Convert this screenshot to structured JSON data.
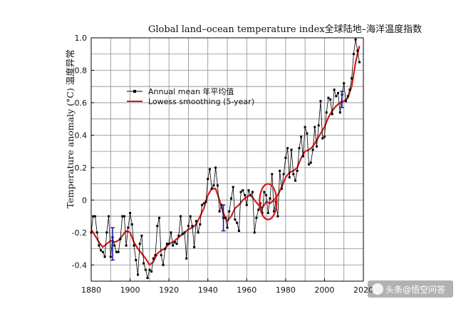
{
  "chart_data": {
    "type": "line",
    "title": "Global land–ocean temperature index全球陆地–海洋温度指数",
    "xlabel": "",
    "ylabel": "Temperature anomaly (°C) 温度异常",
    "xlim": [
      1880,
      2020
    ],
    "ylim": [
      -0.5,
      1.0
    ],
    "x_ticks": [
      "1880",
      "1900",
      "1920",
      "1940",
      "1960",
      "1980",
      "2000",
      "2020"
    ],
    "y_ticks": [
      "-0.4",
      "-0.2",
      "0",
      "0.2",
      "0.4",
      "0.6",
      "0.8",
      "1.0"
    ],
    "grid": true,
    "legend_position": "upper-left",
    "series": [
      {
        "name": "Annual mean 年平均值",
        "color": "#000000",
        "marker": "square",
        "x": [
          1880,
          1881,
          1882,
          1883,
          1884,
          1885,
          1886,
          1887,
          1888,
          1889,
          1890,
          1891,
          1892,
          1893,
          1894,
          1895,
          1896,
          1897,
          1898,
          1899,
          1900,
          1901,
          1902,
          1903,
          1904,
          1905,
          1906,
          1907,
          1908,
          1909,
          1910,
          1911,
          1912,
          1913,
          1914,
          1915,
          1916,
          1917,
          1918,
          1919,
          1920,
          1921,
          1922,
          1923,
          1924,
          1925,
          1926,
          1927,
          1928,
          1929,
          1930,
          1931,
          1932,
          1933,
          1934,
          1935,
          1936,
          1937,
          1938,
          1939,
          1940,
          1941,
          1942,
          1943,
          1944,
          1945,
          1946,
          1947,
          1948,
          1949,
          1950,
          1951,
          1952,
          1953,
          1954,
          1955,
          1956,
          1957,
          1958,
          1959,
          1960,
          1961,
          1962,
          1963,
          1964,
          1965,
          1966,
          1967,
          1968,
          1969,
          1970,
          1971,
          1972,
          1973,
          1974,
          1975,
          1976,
          1977,
          1978,
          1979,
          1980,
          1981,
          1982,
          1983,
          1984,
          1985,
          1986,
          1987,
          1988,
          1989,
          1990,
          1991,
          1992,
          1993,
          1994,
          1995,
          1996,
          1997,
          1998,
          1999,
          2000,
          2001,
          2002,
          2003,
          2004,
          2005,
          2006,
          2007,
          2008,
          2009,
          2010,
          2011,
          2012,
          2013,
          2014,
          2015,
          2016,
          2017,
          2018
        ],
        "y": [
          -0.2,
          -0.1,
          -0.1,
          -0.2,
          -0.28,
          -0.31,
          -0.32,
          -0.35,
          -0.2,
          -0.1,
          -0.35,
          -0.23,
          -0.28,
          -0.32,
          -0.32,
          -0.24,
          -0.1,
          -0.1,
          -0.28,
          -0.17,
          -0.08,
          -0.15,
          -0.28,
          -0.37,
          -0.46,
          -0.27,
          -0.22,
          -0.39,
          -0.43,
          -0.48,
          -0.43,
          -0.44,
          -0.36,
          -0.34,
          -0.16,
          -0.11,
          -0.34,
          -0.4,
          -0.3,
          -0.27,
          -0.27,
          -0.2,
          -0.28,
          -0.26,
          -0.27,
          -0.22,
          -0.1,
          -0.21,
          -0.2,
          -0.36,
          -0.16,
          -0.1,
          -0.16,
          -0.29,
          -0.13,
          -0.2,
          -0.15,
          -0.03,
          -0.02,
          -0.01,
          0.13,
          0.19,
          0.07,
          0.09,
          0.2,
          0.09,
          -0.07,
          -0.03,
          -0.11,
          -0.11,
          -0.17,
          -0.07,
          0.01,
          0.08,
          -0.12,
          -0.14,
          -0.19,
          0.05,
          0.06,
          0.03,
          -0.03,
          0.06,
          0.03,
          0.05,
          -0.2,
          -0.11,
          -0.06,
          -0.02,
          -0.08,
          0.05,
          0.03,
          -0.08,
          0.01,
          0.16,
          -0.07,
          -0.01,
          -0.1,
          0.18,
          0.07,
          0.16,
          0.26,
          0.32,
          0.14,
          0.31,
          0.16,
          0.12,
          0.18,
          0.32,
          0.39,
          0.27,
          0.45,
          0.41,
          0.22,
          0.23,
          0.31,
          0.45,
          0.33,
          0.46,
          0.61,
          0.38,
          0.39,
          0.54,
          0.63,
          0.62,
          0.53,
          0.68,
          0.64,
          0.66,
          0.54,
          0.65,
          0.72,
          0.61,
          0.64,
          0.68,
          0.75,
          0.9,
          0.99,
          0.92,
          0.85
        ]
      },
      {
        "name": "Lowess smoothing (5-year)",
        "color": "#d61a1a",
        "x": [
          1880,
          1882,
          1884,
          1886,
          1888,
          1890,
          1892,
          1894,
          1896,
          1898,
          1900,
          1902,
          1904,
          1906,
          1908,
          1910,
          1912,
          1914,
          1916,
          1918,
          1920,
          1922,
          1924,
          1926,
          1928,
          1930,
          1932,
          1934,
          1936,
          1938,
          1940,
          1942,
          1944,
          1946,
          1948,
          1950,
          1952,
          1954,
          1956,
          1958,
          1960,
          1962,
          1964,
          1966,
          1968,
          1970,
          1972,
          1974,
          1976,
          1978,
          1980,
          1982,
          1984,
          1986,
          1988,
          1990,
          1992,
          1994,
          1996,
          1998,
          2000,
          2002,
          2004,
          2006,
          2008,
          2010,
          2012,
          2014,
          2016,
          2018
        ],
        "y": [
          -0.18,
          -0.22,
          -0.26,
          -0.29,
          -0.27,
          -0.25,
          -0.26,
          -0.25,
          -0.22,
          -0.19,
          -0.2,
          -0.26,
          -0.3,
          -0.33,
          -0.36,
          -0.4,
          -0.38,
          -0.33,
          -0.31,
          -0.3,
          -0.27,
          -0.26,
          -0.24,
          -0.22,
          -0.2,
          -0.18,
          -0.17,
          -0.15,
          -0.1,
          -0.05,
          0.03,
          0.07,
          0.07,
          0.0,
          -0.08,
          -0.13,
          -0.1,
          -0.05,
          -0.03,
          0.0,
          0.02,
          0.03,
          0.0,
          -0.03,
          -0.05,
          -0.01,
          -0.02,
          0.0,
          0.03,
          0.08,
          0.14,
          0.17,
          0.18,
          0.2,
          0.26,
          0.3,
          0.31,
          0.33,
          0.37,
          0.41,
          0.45,
          0.51,
          0.55,
          0.58,
          0.6,
          0.61,
          0.63,
          0.7,
          0.85,
          0.95
        ]
      }
    ],
    "error_bars": [
      {
        "x": 1891,
        "low": -0.37,
        "high": -0.17
      },
      {
        "x": 1948,
        "low": -0.19,
        "high": -0.03
      },
      {
        "x": 2009,
        "low": 0.57,
        "high": 0.67
      }
    ],
    "annotation": {
      "type": "ellipse",
      "color": "#d61a1a",
      "x_center": 1971,
      "y_center": -0.01
    }
  },
  "watermark": "头条@悟空问答"
}
